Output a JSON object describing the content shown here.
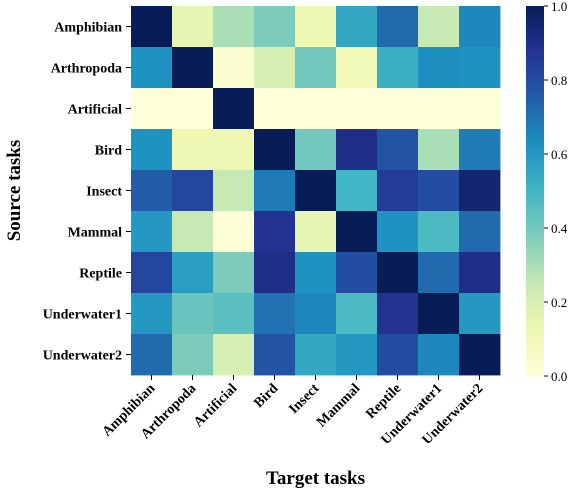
{
  "chart_data": {
    "type": "heatmap",
    "title": "",
    "xlabel": "Target tasks",
    "ylabel": "Source tasks",
    "x_categories": [
      "Amphibian",
      "Arthropoda",
      "Artificial",
      "Bird",
      "Insect",
      "Mammal",
      "Reptile",
      "Underwater1",
      "Underwater2"
    ],
    "y_categories": [
      "Amphibian",
      "Arthropoda",
      "Artificial",
      "Bird",
      "Insect",
      "Mammal",
      "Reptile",
      "Underwater1",
      "Underwater2"
    ],
    "values": [
      [
        1.0,
        0.15,
        0.3,
        0.38,
        0.12,
        0.55,
        0.72,
        0.25,
        0.65
      ],
      [
        0.62,
        1.0,
        0.03,
        0.2,
        0.4,
        0.1,
        0.52,
        0.63,
        0.62
      ],
      [
        0.0,
        0.0,
        1.0,
        0.0,
        0.0,
        0.0,
        0.0,
        0.0,
        0.0
      ],
      [
        0.62,
        0.12,
        0.12,
        1.0,
        0.4,
        0.9,
        0.78,
        0.3,
        0.68
      ],
      [
        0.75,
        0.82,
        0.25,
        0.68,
        1.0,
        0.5,
        0.85,
        0.8,
        0.95
      ],
      [
        0.6,
        0.25,
        0.02,
        0.88,
        0.15,
        1.0,
        0.62,
        0.48,
        0.72
      ],
      [
        0.82,
        0.58,
        0.38,
        0.9,
        0.62,
        0.8,
        1.0,
        0.72,
        0.9
      ],
      [
        0.6,
        0.42,
        0.45,
        0.7,
        0.65,
        0.48,
        0.88,
        1.0,
        0.6
      ],
      [
        0.72,
        0.38,
        0.2,
        0.78,
        0.55,
        0.6,
        0.8,
        0.65,
        1.0
      ]
    ],
    "vmin": 0.0,
    "vmax": 1.0,
    "colormap": "YlGnBu",
    "colormap_stops": [
      "#ffffd9",
      "#edf8b1",
      "#c7e9b4",
      "#7fcdbb",
      "#41b6c4",
      "#1d91c0",
      "#225ea8",
      "#253494",
      "#081d58"
    ],
    "colorbar": {
      "ticks": [
        0.0,
        0.2,
        0.4,
        0.6,
        0.8,
        1.0
      ],
      "tick_labels": [
        "0.0",
        "0.2",
        "0.4",
        "0.6",
        "0.8",
        "1.0"
      ]
    },
    "grid": false
  }
}
